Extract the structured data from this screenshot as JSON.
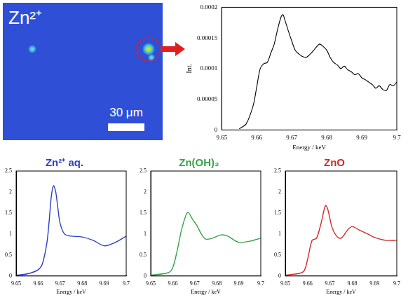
{
  "map": {
    "label": "Zn²⁺",
    "scale_bar": "30 μm"
  },
  "chart_data": [
    {
      "type": "line",
      "x_label": "Energy / keV",
      "y_label": "Int.",
      "color": "#000000",
      "grid": false,
      "x": [
        9.655,
        9.657,
        9.659,
        9.66,
        9.661,
        9.662,
        9.663,
        9.664,
        9.665,
        9.666,
        9.667,
        9.6675,
        9.668,
        9.669,
        9.67,
        9.671,
        9.672,
        9.673,
        9.674,
        9.675,
        9.676,
        9.677,
        9.678,
        9.679,
        9.68,
        9.681,
        9.682,
        9.683,
        9.684,
        9.685,
        9.686,
        9.687,
        9.688,
        9.689,
        9.69,
        9.691,
        9.692,
        9.693,
        9.694,
        9.695,
        9.696,
        9.697,
        9.698,
        9.699,
        9.7
      ],
      "values": [
        2e-06,
        1e-05,
        4e-05,
        7e-05,
        0.0001,
        0.000108,
        0.00011,
        0.000125,
        0.00014,
        0.000165,
        0.000185,
        0.000188,
        0.00018,
        0.000162,
        0.000145,
        0.00013,
        0.000124,
        0.00012,
        0.000118,
        0.000122,
        0.000128,
        0.000135,
        0.00014,
        0.000136,
        0.00013,
        0.000118,
        0.00011,
        0.000106,
        0.0001,
        0.000104,
        9.8e-05,
        9.5e-05,
        9e-05,
        9.2e-05,
        8.5e-05,
        8.2e-05,
        7.8e-05,
        7.4e-05,
        6.8e-05,
        7.2e-05,
        6.6e-05,
        6.4e-05,
        7.4e-05,
        7.2e-05,
        7.8e-05
      ],
      "xlim": [
        9.65,
        9.7
      ],
      "xticks": [
        9.65,
        9.66,
        9.67,
        9.68,
        9.69,
        9.7
      ],
      "ylim": [
        0,
        0.0002
      ],
      "yticks": [
        0,
        5e-05,
        0.0001,
        0.00015,
        0.0002
      ]
    },
    {
      "type": "line",
      "title": "Zn²⁺ aq.",
      "x_label": "Energy / keV",
      "color": "#2b3fc4",
      "grid": false,
      "x": [
        9.65,
        9.655,
        9.66,
        9.662,
        9.664,
        9.665,
        9.666,
        9.667,
        9.668,
        9.669,
        9.67,
        9.672,
        9.675,
        9.68,
        9.685,
        9.69,
        9.695,
        9.7
      ],
      "values": [
        0.02,
        0.05,
        0.15,
        0.3,
        0.8,
        1.3,
        1.9,
        2.15,
        2.0,
        1.6,
        1.25,
        1.0,
        0.95,
        0.93,
        0.85,
        0.72,
        0.8,
        0.95
      ],
      "xlim": [
        9.65,
        9.7
      ],
      "xticks": [
        9.65,
        9.66,
        9.67,
        9.68,
        9.69,
        9.7
      ],
      "ylim": [
        0,
        2.5
      ],
      "yticks": [
        0,
        0.5,
        1,
        1.5,
        2,
        2.5
      ]
    },
    {
      "type": "line",
      "title": "Zn(OH)₂",
      "x_label": "Energy / keV",
      "color": "#3aa34a",
      "grid": false,
      "x": [
        9.65,
        9.658,
        9.66,
        9.662,
        9.664,
        9.666,
        9.667,
        9.669,
        9.671,
        9.673,
        9.675,
        9.678,
        9.682,
        9.685,
        9.69,
        9.695,
        9.7
      ],
      "values": [
        0.02,
        0.08,
        0.2,
        0.6,
        1.1,
        1.45,
        1.52,
        1.35,
        1.2,
        1.0,
        0.88,
        0.9,
        0.98,
        0.95,
        0.8,
        0.83,
        0.9
      ],
      "xlim": [
        9.65,
        9.7
      ],
      "xticks": [
        9.65,
        9.66,
        9.67,
        9.68,
        9.69,
        9.7
      ],
      "ylim": [
        0,
        2.5
      ],
      "yticks": [
        0,
        0.5,
        1,
        1.5,
        2,
        2.5
      ]
    },
    {
      "type": "line",
      "title": "ZnO",
      "x_label": "Energy / keV",
      "color": "#d22a2a",
      "grid": false,
      "x": [
        9.65,
        9.658,
        9.66,
        9.662,
        9.664,
        9.666,
        9.668,
        9.669,
        9.671,
        9.673,
        9.675,
        9.678,
        9.68,
        9.683,
        9.687,
        9.69,
        9.695,
        9.7
      ],
      "values": [
        0.02,
        0.1,
        0.4,
        0.85,
        0.9,
        1.25,
        1.68,
        1.6,
        1.15,
        0.95,
        0.9,
        1.1,
        1.18,
        1.1,
        1.0,
        0.92,
        0.85,
        0.85
      ],
      "xlim": [
        9.65,
        9.7
      ],
      "xticks": [
        9.65,
        9.66,
        9.67,
        9.68,
        9.69,
        9.7
      ],
      "ylim": [
        0,
        2.5
      ],
      "yticks": [
        0,
        0.5,
        1,
        1.5,
        2,
        2.5
      ]
    }
  ]
}
